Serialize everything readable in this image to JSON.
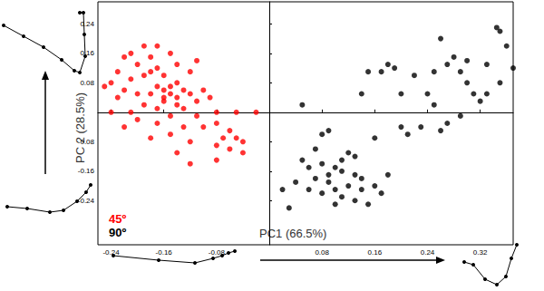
{
  "chart_data": {
    "type": "scatter",
    "x_label": "PC1 (66.5%)",
    "y_label": "PC 2 (28.5%)",
    "xlim": [
      -0.26,
      0.37
    ],
    "ylim": [
      -0.36,
      0.3
    ],
    "xticks": [
      -0.24,
      -0.16,
      -0.08,
      0.08,
      0.16,
      0.24,
      0.32
    ],
    "yticks": [
      -0.24,
      -0.16,
      -0.08,
      0.08,
      0.16,
      0.24
    ],
    "grid": false,
    "legend": "lower left",
    "series": [
      {
        "name": "45º",
        "color": "#ff0000",
        "x": [
          -0.19,
          -0.17,
          -0.21,
          -0.22,
          -0.18,
          -0.15,
          -0.2,
          -0.17,
          -0.14,
          -0.23,
          -0.24,
          -0.21,
          -0.19,
          -0.16,
          -0.12,
          -0.11,
          -0.14,
          -0.17,
          -0.15,
          -0.16,
          -0.13,
          -0.18,
          -0.15,
          -0.14,
          -0.16,
          -0.2,
          -0.23,
          -0.25,
          -0.22,
          -0.12,
          -0.1,
          -0.09,
          -0.19,
          -0.17,
          -0.21,
          -0.24,
          -0.13,
          -0.15,
          -0.2,
          -0.11,
          -0.08,
          -0.05,
          -0.02,
          -0.17,
          -0.13,
          -0.1,
          -0.22,
          -0.15,
          -0.18,
          -0.12,
          -0.08,
          -0.06,
          -0.07,
          -0.05,
          -0.04,
          -0.08,
          -0.06,
          -0.04,
          -0.14,
          -0.12,
          -0.08,
          -0.16,
          -0.18,
          -0.14,
          -0.11
        ],
        "values": [
          0.18,
          0.18,
          0.16,
          0.15,
          0.15,
          0.16,
          0.13,
          0.12,
          0.13,
          0.11,
          0.08,
          0.09,
          0.1,
          0.1,
          0.11,
          0.14,
          0.08,
          0.07,
          0.07,
          0.06,
          0.06,
          0.05,
          0.05,
          0.04,
          0.04,
          0.05,
          0.04,
          0.07,
          0.06,
          0.05,
          0.06,
          0.04,
          0.02,
          0.01,
          0.0,
          0.0,
          0.01,
          -0.01,
          -0.02,
          -0.01,
          0.0,
          0.0,
          0.0,
          -0.03,
          -0.04,
          -0.04,
          -0.04,
          -0.06,
          -0.07,
          -0.08,
          -0.03,
          -0.05,
          -0.07,
          -0.07,
          -0.08,
          -0.09,
          -0.1,
          -0.11,
          -0.11,
          -0.14,
          -0.13,
          0.03,
          0.11,
          0.02,
          0.03
        ]
      },
      {
        "name": "90º",
        "color": "#000000",
        "x": [
          0.05,
          0.08,
          0.09,
          0.14,
          0.15,
          0.17,
          0.18,
          0.19,
          0.2,
          0.22,
          0.24,
          0.25,
          0.26,
          0.27,
          0.28,
          0.29,
          0.3,
          0.31,
          0.32,
          0.33,
          0.33,
          0.35,
          0.345,
          0.36,
          0.3,
          0.25,
          0.35,
          0.37,
          0.29,
          0.27,
          0.26,
          0.23,
          0.21,
          0.2,
          0.16,
          0.05,
          0.07,
          0.06,
          0.08,
          0.09,
          0.1,
          0.11,
          0.12,
          0.13,
          0.11,
          0.13,
          0.07,
          0.09,
          0.04,
          0.06,
          0.08,
          0.1,
          0.12,
          0.14,
          0.16,
          0.11,
          0.13,
          0.15,
          0.17,
          0.18,
          0.02,
          0.03,
          0.1,
          0.14
        ],
        "values": [
          0.02,
          -0.06,
          -0.05,
          0.05,
          0.11,
          0.11,
          0.13,
          0.12,
          0.05,
          0.1,
          0.05,
          0.02,
          0.2,
          0.13,
          0.15,
          0.11,
          0.08,
          0.05,
          0.03,
          0.05,
          0.13,
          0.22,
          0.23,
          0.18,
          0.14,
          0.11,
          0.08,
          0.12,
          -0.01,
          -0.03,
          -0.05,
          -0.04,
          -0.06,
          -0.04,
          -0.07,
          -0.13,
          -0.1,
          -0.15,
          -0.14,
          -0.17,
          -0.15,
          -0.13,
          -0.11,
          -0.12,
          -0.16,
          -0.17,
          -0.18,
          -0.19,
          -0.19,
          -0.21,
          -0.22,
          -0.21,
          -0.2,
          -0.21,
          -0.2,
          -0.23,
          -0.24,
          -0.25,
          -0.22,
          -0.17,
          -0.21,
          -0.26,
          -0.25,
          -0.18
        ]
      }
    ]
  }
}
